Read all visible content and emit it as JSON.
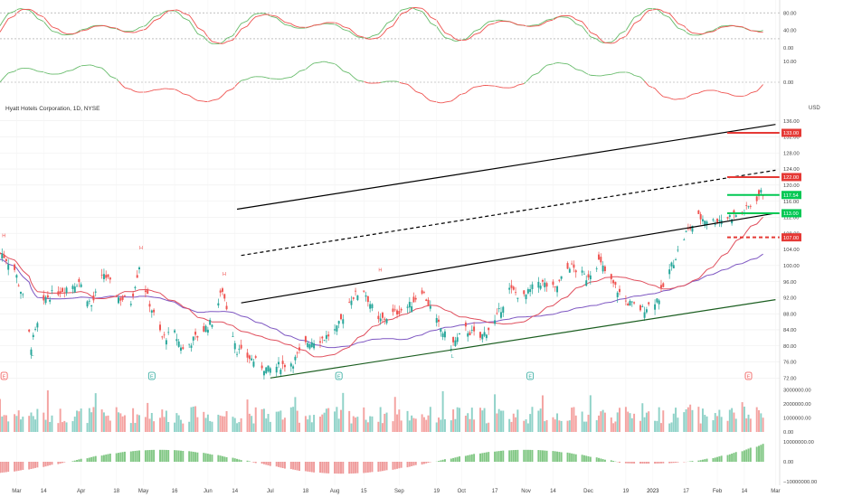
{
  "header": {
    "title": "Hyatt Hotels Corporation, 1D, NYSE",
    "currency": "USD"
  },
  "colors": {
    "up": "#26a69a",
    "down": "#ef5350",
    "bright_up": "#00c853",
    "bright_down": "#e53935",
    "sma_fast": "#e0505e",
    "sma_slow": "#7e57c2",
    "stoch_k": "#66bb6a",
    "stoch_d": "#ef5350",
    "grid": "#eeeeee",
    "text": "#333333",
    "axis_text": "#444444"
  },
  "chart_data": [
    {
      "type": "candlestick",
      "name": "price",
      "title": "Hyatt Hotels Corporation, 1D, NYSE",
      "y_unit": "USD",
      "ylim": [
        70.5,
        137.5
      ],
      "y_ticks": [
        72,
        76,
        80,
        84,
        88,
        92,
        96,
        100,
        104,
        108,
        112,
        116,
        120,
        124,
        128,
        132,
        136
      ],
      "x_ticks": [
        "Mar",
        "14",
        "Apr",
        "18",
        "May",
        "16",
        "Jun",
        "14",
        "Jul",
        "18",
        "Aug",
        "15",
        "Sep",
        "19",
        "Oct",
        "17",
        "Nov",
        "14",
        "Dec",
        "19",
        "2023",
        "17",
        "Feb",
        "14",
        "Mar"
      ],
      "x_tick_dates": [
        "2022-03-01",
        "2022-03-14",
        "2022-04-01",
        "2022-04-18",
        "2022-05-01",
        "2022-05-16",
        "2022-06-01",
        "2022-06-14",
        "2022-07-01",
        "2022-07-18",
        "2022-08-01",
        "2022-08-15",
        "2022-09-01",
        "2022-09-19",
        "2022-10-01",
        "2022-10-17",
        "2022-11-01",
        "2022-11-14",
        "2022-12-01",
        "2022-12-19",
        "2023-01-01",
        "2023-01-17",
        "2023-02-01",
        "2023-02-14",
        "2023-03-01"
      ],
      "x_range": [
        "2022-02-21",
        "2023-03-03"
      ],
      "candles_generated_from_anchor_closes": [
        [
          "2022-02-22",
          103
        ],
        [
          "2022-02-28",
          99
        ],
        [
          "2022-03-04",
          92
        ],
        [
          "2022-03-08",
          80
        ],
        [
          "2022-03-15",
          92
        ],
        [
          "2022-03-23",
          94
        ],
        [
          "2022-03-31",
          96
        ],
        [
          "2022-04-06",
          90
        ],
        [
          "2022-04-12",
          98
        ],
        [
          "2022-04-19",
          92
        ],
        [
          "2022-04-25",
          91
        ],
        [
          "2022-04-29",
          100
        ],
        [
          "2022-05-03",
          92
        ],
        [
          "2022-05-10",
          82
        ],
        [
          "2022-05-16",
          83
        ],
        [
          "2022-05-20",
          79
        ],
        [
          "2022-05-26",
          82
        ],
        [
          "2022-06-03",
          86
        ],
        [
          "2022-06-08",
          94
        ],
        [
          "2022-06-15",
          79
        ],
        [
          "2022-06-24",
          76
        ],
        [
          "2022-06-30",
          74
        ],
        [
          "2022-07-05",
          75
        ],
        [
          "2022-07-12",
          76
        ],
        [
          "2022-07-19",
          81
        ],
        [
          "2022-07-27",
          82
        ],
        [
          "2022-08-02",
          84
        ],
        [
          "2022-08-09",
          92
        ],
        [
          "2022-08-15",
          94
        ],
        [
          "2022-08-22",
          86
        ],
        [
          "2022-08-29",
          88
        ],
        [
          "2022-09-06",
          90
        ],
        [
          "2022-09-12",
          94
        ],
        [
          "2022-09-19",
          86
        ],
        [
          "2022-09-26",
          80
        ],
        [
          "2022-10-03",
          84
        ],
        [
          "2022-10-10",
          82
        ],
        [
          "2022-10-17",
          86
        ],
        [
          "2022-10-24",
          94
        ],
        [
          "2022-10-31",
          92
        ],
        [
          "2022-11-07",
          96
        ],
        [
          "2022-11-15",
          94
        ],
        [
          "2022-11-22",
          100
        ],
        [
          "2022-11-30",
          97
        ],
        [
          "2022-12-06",
          101
        ],
        [
          "2022-12-12",
          96
        ],
        [
          "2022-12-19",
          91
        ],
        [
          "2022-12-27",
          89
        ],
        [
          "2023-01-04",
          92
        ],
        [
          "2023-01-10",
          100
        ],
        [
          "2023-01-17",
          108
        ],
        [
          "2023-01-23",
          112
        ],
        [
          "2023-01-30",
          111
        ],
        [
          "2023-02-06",
          112
        ],
        [
          "2023-02-13",
          113
        ],
        [
          "2023-02-17",
          115
        ],
        [
          "2023-02-22",
          118
        ]
      ],
      "signals": {
        "high_labels": [
          "H",
          "H",
          "H",
          "H"
        ],
        "low_labels": [
          "L",
          "L"
        ]
      },
      "price_tags": [
        {
          "label": "133.00",
          "value": 133.0,
          "color": "#e53935"
        },
        {
          "label": "122.00",
          "value": 122.0,
          "color": "#e53935"
        },
        {
          "label": "117.54",
          "value": 117.54,
          "color": "#00c853"
        },
        {
          "label": "113.00",
          "value": 113.0,
          "color": "#00c853"
        },
        {
          "label": "107.00",
          "value": 107.0,
          "color": "#e53935"
        }
      ],
      "trendlines": [
        {
          "style": "solid",
          "color": "#000000",
          "from": [
            "2022-06-15",
            114.0
          ],
          "to": [
            "2023-03-01",
            135.1
          ]
        },
        {
          "style": "dashed",
          "color": "#000000",
          "from": [
            "2022-06-17",
            102.5
          ],
          "to": [
            "2023-03-01",
            123.7
          ]
        },
        {
          "style": "solid",
          "color": "#000000",
          "from": [
            "2022-06-17",
            90.7
          ],
          "to": [
            "2023-03-01",
            113.0
          ]
        },
        {
          "style": "solid",
          "color": "#1b5e20",
          "from": [
            "2022-07-01",
            72.0
          ],
          "to": [
            "2023-03-01",
            91.5
          ]
        }
      ],
      "markers": [
        "E",
        "E",
        "E",
        "E",
        "E"
      ]
    },
    {
      "type": "line",
      "name": "stochastic",
      "ylim": [
        -3,
        97
      ],
      "y_ticks": [
        0.0,
        40.0,
        80.0
      ],
      "y_tick_labels": [
        "0.00",
        "40.00",
        "80.00"
      ],
      "reference_lines": [
        20,
        80
      ]
    },
    {
      "type": "line",
      "name": "momentum",
      "y_ticks": [
        0.0,
        10.0
      ],
      "y_tick_labels": [
        "0.00",
        "10.00"
      ]
    },
    {
      "type": "bar",
      "name": "volume",
      "y_ticks": [
        0,
        1000000,
        2000000,
        3000000
      ],
      "y_tick_labels": [
        "0.00",
        "1000000.00",
        "2000000.00",
        "3000000.00"
      ]
    },
    {
      "type": "bar",
      "name": "volume_oscillator",
      "y_ticks": [
        -10000000,
        0,
        10000000
      ],
      "y_tick_labels": [
        "−10000000.00",
        "0.00",
        "10000000.00"
      ]
    }
  ]
}
